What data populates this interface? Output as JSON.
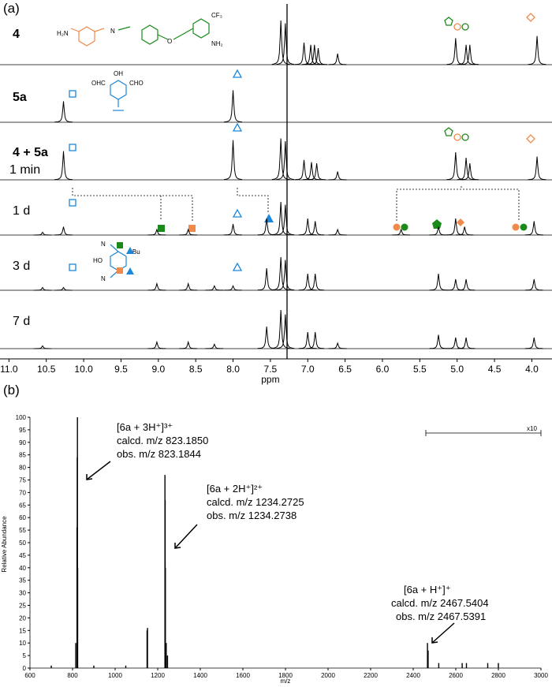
{
  "panel_a": {
    "label": "(a)",
    "x_label": "ppm",
    "xlim": [
      11.12,
      3.73
    ],
    "xticks": [
      {
        "value": 11,
        "label": "11.0"
      },
      {
        "value": 10.5,
        "label": "10.5"
      },
      {
        "value": 10,
        "label": "10.0"
      },
      {
        "value": 9.5,
        "label": "9.5"
      },
      {
        "value": 9,
        "label": "9.0"
      },
      {
        "value": 8.5,
        "label": "8.5"
      },
      {
        "value": 8,
        "label": "8.0"
      },
      {
        "value": 7.5,
        "label": "7.5"
      },
      {
        "value": 7,
        "label": "7.0"
      },
      {
        "value": 6.5,
        "label": "6.5"
      },
      {
        "value": 6,
        "label": "6.0"
      },
      {
        "value": 5.5,
        "label": "5.5"
      },
      {
        "value": 5,
        "label": "5.0"
      },
      {
        "value": 4.5,
        "label": "4.5"
      },
      {
        "value": 4,
        "label": "4.0"
      }
    ],
    "rows": [
      {
        "label": "4",
        "ppm": [
          7.36,
          7.3,
          7.05,
          6.96,
          6.91,
          6.86,
          6.6,
          5.02,
          4.88,
          4.83,
          3.93
        ],
        "heights": [
          80,
          75,
          40,
          36,
          36,
          30,
          20,
          48,
          36,
          36,
          52
        ]
      },
      {
        "label": "5a",
        "ppm": [
          10.27,
          8.0
        ],
        "heights": [
          38,
          58
        ]
      },
      {
        "label": "4 + 5a",
        "sublabel": "1 min",
        "ppm": [
          10.27,
          8.0,
          7.36,
          7.3,
          7.05,
          6.95,
          6.88,
          6.6,
          5.02,
          4.88,
          4.83,
          3.93
        ],
        "heights": [
          52,
          72,
          75,
          70,
          36,
          32,
          30,
          15,
          50,
          40,
          30,
          42
        ]
      },
      {
        "label": "1 d",
        "ppm": [
          10.55,
          10.27,
          9.02,
          8.6,
          8.0,
          7.55,
          7.36,
          7.3,
          7.0,
          6.9,
          6.6,
          5.75,
          5.25,
          5.02,
          4.9,
          3.97
        ],
        "heights": [
          5,
          15,
          10,
          10,
          20,
          30,
          60,
          55,
          30,
          25,
          10,
          10,
          15,
          30,
          15,
          25
        ]
      },
      {
        "label": "3 d",
        "ppm": [
          10.55,
          10.27,
          9.02,
          8.6,
          8.25,
          8.0,
          7.55,
          7.36,
          7.3,
          7.0,
          6.9,
          5.25,
          5.02,
          4.88,
          3.97
        ],
        "heights": [
          5,
          5,
          12,
          12,
          8,
          8,
          40,
          60,
          55,
          30,
          30,
          30,
          20,
          20,
          20
        ]
      },
      {
        "label": "7 d",
        "ppm": [
          10.55,
          9.02,
          8.6,
          8.25,
          7.55,
          7.36,
          7.3,
          7.0,
          6.9,
          6.6,
          5.25,
          5.02,
          4.88,
          3.97
        ],
        "heights": [
          5,
          12,
          12,
          8,
          40,
          70,
          62,
          30,
          30,
          10,
          25,
          20,
          20,
          20
        ]
      }
    ],
    "structure_labels": [
      "H₂N",
      "N",
      "O",
      "CF₃",
      "NH₂",
      "OHC",
      "OH",
      "CHO",
      "HO",
      "t-Bu",
      "N",
      "N"
    ]
  },
  "panel_b": {
    "label": "(b)",
    "x_label": "m/z",
    "y_label": "Relative Abundance",
    "scale_label": "x10",
    "xlim": [
      600,
      3000
    ],
    "xticks": [
      600,
      800,
      1000,
      1200,
      1400,
      1600,
      1800,
      2000,
      2200,
      2400,
      2600,
      2800,
      3000
    ],
    "ylim": [
      0,
      100
    ],
    "yticks": [
      0,
      5,
      10,
      15,
      20,
      25,
      30,
      35,
      40,
      45,
      50,
      55,
      60,
      65,
      70,
      75,
      80,
      85,
      90,
      95,
      100
    ],
    "peaks_mz": [
      700,
      815,
      821,
      822,
      823,
      824,
      900,
      1050,
      1150,
      1152,
      1234,
      1235,
      1236,
      1240,
      1246,
      2467,
      2470,
      2520,
      2630,
      2650,
      2750,
      2800
    ],
    "peaks_abundance": [
      1,
      10,
      56,
      84,
      100,
      40,
      1,
      1,
      15,
      16,
      77,
      67,
      40,
      10,
      5,
      10,
      7,
      2,
      2,
      2,
      2,
      2
    ],
    "annotations": [
      {
        "ion": "[6a + 3H⁺]³⁺",
        "calcd": "calcd. m/z 823.1850",
        "obs": "obs. m/z 823.1844"
      },
      {
        "ion": "[6a + 2H⁺]²⁺",
        "calcd": "calcd. m/z 1234.2725",
        "obs": "obs. m/z 1234.2738"
      },
      {
        "ion": "[6a + H⁺]⁺",
        "calcd": "calcd. m/z 2467.5404",
        "obs": "obs. m/z 2467.5391"
      }
    ]
  }
}
